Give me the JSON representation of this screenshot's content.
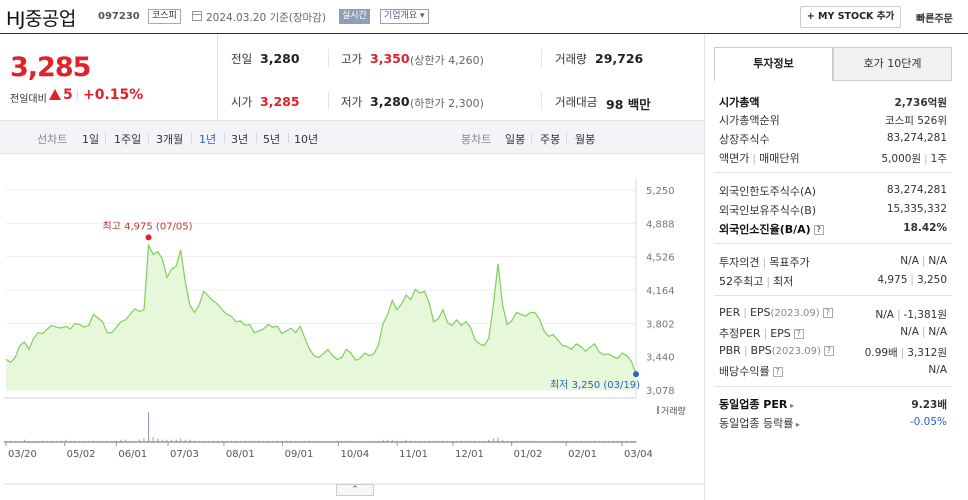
{
  "header": {
    "company_name": "HJ중공업",
    "code": "097230",
    "market": "코스피",
    "date_text": "2024.03.20  기준(장마감)",
    "realtime_label": "실시간",
    "company_info_label": "기업개요",
    "my_stock_label": "+ MY STOCK 추가",
    "quick_order_label": "빠른주문"
  },
  "price": {
    "current": "3,285",
    "change_label": "전일대비",
    "change_value": "5",
    "change_percent": "+0.15%"
  },
  "stats": {
    "prev_close_label": "전일",
    "prev_close": "3,280",
    "high_label": "고가",
    "high": "3,350",
    "upper_limit": "(상한가 4,260)",
    "volume_label": "거래량",
    "volume": "29,726",
    "open_label": "시가",
    "open": "3,285",
    "low_label": "저가",
    "low": "3,280",
    "lower_limit": "(하한가 2,300)",
    "amount_label": "거래대금",
    "amount": "98 백만"
  },
  "toolbar": {
    "line_chart_label": "선차트",
    "periods": [
      "1일",
      "1주일",
      "3개월",
      "1년",
      "3년",
      "5년",
      "10년"
    ],
    "active_period": "1년",
    "candle_chart_label": "봉차트",
    "candle_periods": [
      "일봉",
      "주봉",
      "월봉"
    ]
  },
  "chart": {
    "high_label": "최고 4,975 (07/05)",
    "low_label": "최저 3,250 (03/19)",
    "volume_label": "거래량",
    "line_color": "#7fcf5a",
    "fill_color": "#e6f7da"
  },
  "chart_data": {
    "type": "area",
    "title": "",
    "y_ticks": [
      "5,250",
      "4,888",
      "4,526",
      "4,164",
      "3,802",
      "3,440",
      "3,078"
    ],
    "ylim": [
      3078,
      5250
    ],
    "x_ticks": [
      "03/20",
      "05/02",
      "06/01",
      "07/03",
      "08/01",
      "09/01",
      "10/04",
      "11/01",
      "12/01",
      "01/02",
      "02/01",
      "03/04"
    ],
    "series": [
      {
        "values": [
          3410,
          3380,
          3430,
          3560,
          3600,
          3520,
          3640,
          3700,
          3690,
          3740,
          3780,
          3760,
          3750,
          3770,
          3740,
          3800,
          3790,
          3760,
          3780,
          3900,
          3860,
          3820,
          3700,
          3700,
          3760,
          3820,
          3840,
          3900,
          3960,
          3930,
          3950,
          4650,
          4550,
          4580,
          4500,
          4300,
          4390,
          4420,
          4600,
          4250,
          4000,
          3920,
          4000,
          4150,
          4100,
          4050,
          4010,
          3950,
          3900,
          3880,
          3820,
          3830,
          3780,
          3790,
          3700,
          3720,
          3740,
          3790,
          3760,
          3770,
          3690,
          3720,
          3750,
          3700,
          3770,
          3640,
          3520,
          3450,
          3430,
          3470,
          3520,
          3450,
          3410,
          3430,
          3520,
          3480,
          3400,
          3420,
          3480,
          3450,
          3470,
          3570,
          3800,
          3900,
          4050,
          3950,
          4010,
          4110,
          4060,
          4170,
          4130,
          4150,
          4030,
          3820,
          3850,
          3950,
          3810,
          3780,
          3840,
          3780,
          3820,
          3760,
          3620,
          3580,
          3560,
          3640,
          4000,
          4450,
          4000,
          3790,
          3830,
          3920,
          3900,
          3880,
          3920,
          3920,
          3850,
          3720,
          3660,
          3680,
          3620,
          3560,
          3550,
          3520,
          3580,
          3550,
          3500,
          3540,
          3580,
          3490,
          3460,
          3470,
          3440,
          3420,
          3480,
          3450,
          3390,
          3250
        ],
        "color": "#7fcf5a"
      }
    ],
    "high_point": {
      "value": 4975,
      "date": "07/05"
    },
    "low_point": {
      "value": 3250,
      "date": "03/19"
    },
    "volume_values": [
      1,
      1,
      1,
      1,
      2,
      1,
      1,
      1,
      1,
      1,
      1,
      1,
      1,
      2,
      1,
      1,
      1,
      1,
      1,
      1,
      1,
      1,
      1,
      1,
      1,
      2,
      2,
      1,
      1,
      2,
      3,
      26,
      4,
      3,
      2,
      2,
      2,
      2,
      3,
      2,
      2,
      1,
      1,
      1,
      1,
      1,
      1,
      1,
      1,
      1,
      1,
      1,
      1,
      1,
      1,
      1,
      1,
      1,
      1,
      1,
      1,
      1,
      1,
      1,
      1,
      1,
      1,
      1,
      1,
      1,
      1,
      1,
      1,
      1,
      1,
      1,
      1,
      1,
      1,
      1,
      1,
      1,
      2,
      2,
      2,
      1,
      1,
      2,
      1,
      1,
      1,
      1,
      1,
      1,
      1,
      1,
      1,
      1,
      1,
      1,
      1,
      1,
      1,
      1,
      1,
      2,
      3,
      4,
      2,
      1,
      1,
      1,
      1,
      1,
      1,
      1,
      1,
      1,
      1,
      1,
      1,
      1,
      1,
      1,
      1,
      1,
      1,
      1,
      1,
      1,
      1,
      1,
      1,
      1,
      1,
      1,
      1,
      1
    ]
  },
  "sidebar": {
    "tab_active": "투자정보",
    "tab_inactive": "호가 10단계",
    "market_cap_label": "시가총액",
    "market_cap": "2,736억원",
    "rank_label": "시가총액순위",
    "rank": "코스피 526위",
    "shares_label": "상장주식수",
    "shares": "83,274,281",
    "par_label_a": "액면가",
    "par_label_b": "매매단위",
    "par_a": "5,000원",
    "par_b": "1주",
    "foreign_limit_label": "외국인한도주식수(A)",
    "foreign_limit": "83,274,281",
    "foreign_hold_label": "외국인보유주식수(B)",
    "foreign_hold": "15,335,332",
    "foreign_ratio_label": "외국인소진율(B/A)",
    "foreign_ratio": "18.42%",
    "opinion_label_a": "투자의견",
    "opinion_label_b": "목표주가",
    "opinion_a": "N/A",
    "opinion_b": "N/A",
    "week52_label_a": "52주최고",
    "week52_label_b": "최저",
    "week52_a": "4,975",
    "week52_b": "3,250",
    "per_label_a": "PER",
    "per_label_b": "EPS",
    "per_period": "(2023.09)",
    "per_a": "N/A",
    "per_b": "-1,381원",
    "est_label_a": "추정PER",
    "est_label_b": "EPS",
    "est_a": "N/A",
    "est_b": "N/A",
    "pbr_label_a": "PBR",
    "pbr_label_b": "BPS",
    "pbr_period": "(2023.09)",
    "pbr_a": "0.99배",
    "pbr_b": "3,312원",
    "div_label": "배당수익률",
    "div": "N/A",
    "peer_per_label": "동일업종 PER",
    "peer_per": "9.23배",
    "peer_rate_label": "동일업종 등락률",
    "peer_rate": "-0.05%"
  }
}
